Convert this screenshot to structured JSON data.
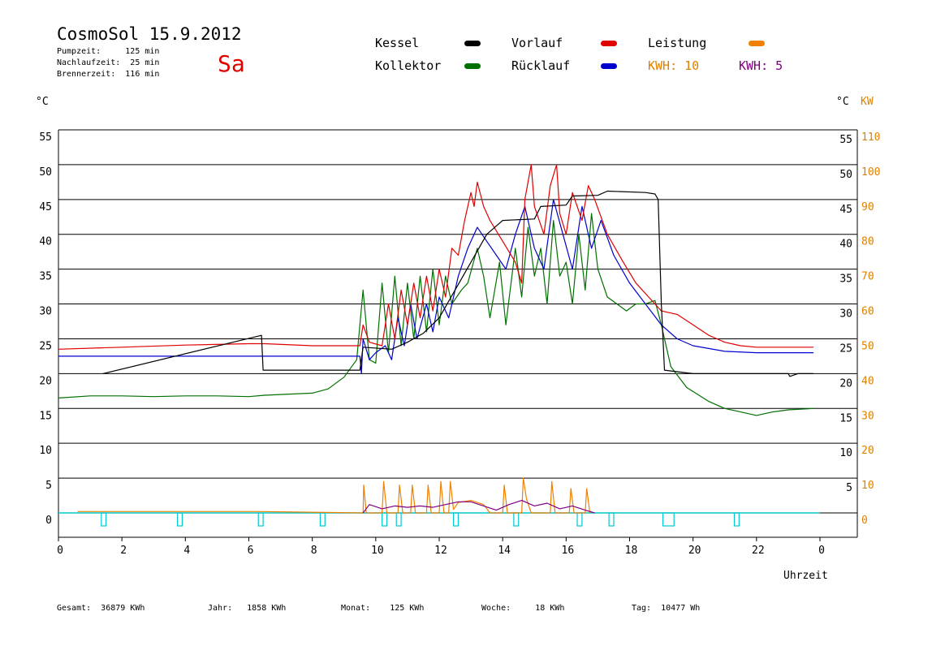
{
  "header": {
    "title": "CosmoSol 15.9.2012",
    "weekday": "Sa",
    "pumpzeit": "Pumpzeit:     125 min",
    "nachlaufzeit": "Nachlaufzeit:  25 min",
    "brennerzeit": "Brennerzeit:  116 min"
  },
  "legend": {
    "kessel": "Kessel",
    "vorlauf": "Vorlauf",
    "leistung": "Leistung",
    "kollektor": "Kollektor",
    "ruecklauf": "Rücklauf",
    "kwh_orange": "KWH: 10",
    "kwh_purple": "KWH: 5"
  },
  "axes": {
    "left_unit": "°C",
    "right_unit_temp": "°C",
    "right_unit_kw": "KW",
    "xlabel": "Uhrzeit"
  },
  "footer": {
    "gesamt": "Gesamt:  36879 KWh",
    "jahr": "Jahr:   1858 KWh",
    "monat": "Monat:    125 KWh",
    "woche": "Woche:     18 KWh",
    "tag": "Tag:  10477 Wh"
  },
  "colors": {
    "kessel": "#000000",
    "vorlauf": "#e00000",
    "ruecklauf": "#0000cc",
    "kollektor": "#007000",
    "leistung": "#f08000",
    "kwh_purple": "#800080",
    "pump": "#00c8d0"
  },
  "chart_data": {
    "type": "line",
    "x_ticks": [
      "0",
      "2",
      "4",
      "6",
      "8",
      "10",
      "12",
      "14",
      "16",
      "18",
      "20",
      "22",
      "0"
    ],
    "xlim": [
      0,
      24
    ],
    "y_ticks_left": [
      "0",
      "5",
      "10",
      "15",
      "20",
      "25",
      "30",
      "35",
      "40",
      "45",
      "50",
      "55"
    ],
    "y_ticks_right_temp": [
      "5",
      "10",
      "15",
      "20",
      "25",
      "30",
      "35",
      "40",
      "45",
      "50",
      "55"
    ],
    "y_ticks_right_kw": [
      "0",
      "10",
      "20",
      "30",
      "40",
      "50",
      "60",
      "70",
      "80",
      "90",
      "100",
      "110"
    ],
    "ylim": [
      0,
      55
    ],
    "y2lim": [
      0,
      110
    ],
    "series": [
      {
        "name": "Kessel",
        "color": "#000000",
        "points": [
          [
            1.4,
            20.0
          ],
          [
            6.4,
            25.5
          ],
          [
            6.45,
            20.5
          ],
          [
            9.5,
            20.5
          ],
          [
            9.6,
            23.8
          ],
          [
            10.5,
            23.5
          ],
          [
            11.0,
            24.5
          ],
          [
            11.5,
            25.8
          ],
          [
            12.0,
            28.0
          ],
          [
            12.5,
            32.0
          ],
          [
            13.0,
            36.0
          ],
          [
            13.5,
            40.0
          ],
          [
            14.0,
            42.0
          ],
          [
            15.0,
            42.2
          ],
          [
            15.2,
            44.0
          ],
          [
            16.0,
            44.2
          ],
          [
            16.2,
            45.5
          ],
          [
            17.0,
            45.6
          ],
          [
            17.3,
            46.2
          ],
          [
            18.5,
            46.0
          ],
          [
            18.8,
            45.8
          ],
          [
            18.9,
            45.0
          ],
          [
            19.0,
            30.0
          ],
          [
            19.1,
            20.5
          ],
          [
            20.0,
            20.0
          ],
          [
            23.0,
            20.0
          ],
          [
            23.05,
            19.6
          ],
          [
            23.3,
            20.0
          ],
          [
            23.8,
            20.0
          ]
        ]
      },
      {
        "name": "Vorlauf",
        "color": "#e00000",
        "points": [
          [
            0,
            23.5
          ],
          [
            2,
            23.8
          ],
          [
            4,
            24.1
          ],
          [
            6,
            24.3
          ],
          [
            6.5,
            24.3
          ],
          [
            8,
            24.0
          ],
          [
            9.5,
            24.0
          ],
          [
            9.6,
            27.0
          ],
          [
            9.8,
            24.5
          ],
          [
            10.2,
            24.0
          ],
          [
            10.4,
            30.0
          ],
          [
            10.6,
            25.0
          ],
          [
            10.8,
            32.0
          ],
          [
            11.0,
            27.0
          ],
          [
            11.2,
            33.0
          ],
          [
            11.4,
            28.0
          ],
          [
            11.6,
            34.0
          ],
          [
            11.8,
            29.0
          ],
          [
            12.0,
            35.0
          ],
          [
            12.2,
            31.0
          ],
          [
            12.4,
            38.0
          ],
          [
            12.6,
            37.0
          ],
          [
            12.8,
            42.0
          ],
          [
            13.0,
            46.0
          ],
          [
            13.1,
            44.0
          ],
          [
            13.2,
            47.5
          ],
          [
            13.4,
            44.0
          ],
          [
            13.6,
            42.0
          ],
          [
            14.0,
            39.0
          ],
          [
            14.4,
            36.0
          ],
          [
            14.6,
            33.0
          ],
          [
            14.7,
            45.0
          ],
          [
            14.9,
            50.0
          ],
          [
            15.0,
            44.0
          ],
          [
            15.3,
            40.0
          ],
          [
            15.5,
            47.0
          ],
          [
            15.7,
            50.0
          ],
          [
            15.8,
            43.0
          ],
          [
            16.0,
            40.0
          ],
          [
            16.2,
            46.0
          ],
          [
            16.5,
            42.0
          ],
          [
            16.7,
            47.0
          ],
          [
            16.9,
            45.0
          ],
          [
            17.3,
            40.0
          ],
          [
            17.8,
            36.0
          ],
          [
            18.2,
            33.0
          ],
          [
            18.6,
            31.0
          ],
          [
            19.0,
            29.0
          ],
          [
            19.5,
            28.5
          ],
          [
            20.0,
            27.0
          ],
          [
            20.5,
            25.5
          ],
          [
            21.0,
            24.5
          ],
          [
            21.5,
            24.0
          ],
          [
            22.0,
            23.8
          ],
          [
            23.0,
            23.8
          ],
          [
            23.8,
            23.8
          ]
        ]
      },
      {
        "name": "Rücklauf",
        "color": "#0000cc",
        "points": [
          [
            0,
            22.5
          ],
          [
            3,
            22.5
          ],
          [
            6,
            22.5
          ],
          [
            7,
            22.5
          ],
          [
            9.5,
            22.5
          ],
          [
            9.55,
            20.0
          ],
          [
            9.6,
            25.0
          ],
          [
            9.8,
            22.0
          ],
          [
            10.0,
            23.0
          ],
          [
            10.3,
            24.0
          ],
          [
            10.5,
            22.0
          ],
          [
            10.7,
            28.0
          ],
          [
            10.9,
            24.0
          ],
          [
            11.1,
            30.0
          ],
          [
            11.3,
            25.0
          ],
          [
            11.6,
            30.0
          ],
          [
            11.8,
            26.0
          ],
          [
            12.0,
            31.0
          ],
          [
            12.3,
            28.0
          ],
          [
            12.6,
            34.0
          ],
          [
            12.9,
            38.0
          ],
          [
            13.2,
            41.0
          ],
          [
            13.5,
            39.0
          ],
          [
            13.8,
            37.0
          ],
          [
            14.1,
            35.0
          ],
          [
            14.4,
            40.0
          ],
          [
            14.7,
            44.0
          ],
          [
            15.0,
            38.0
          ],
          [
            15.3,
            35.0
          ],
          [
            15.6,
            45.0
          ],
          [
            15.9,
            40.0
          ],
          [
            16.2,
            35.0
          ],
          [
            16.5,
            44.0
          ],
          [
            16.8,
            38.0
          ],
          [
            17.1,
            42.0
          ],
          [
            17.5,
            37.0
          ],
          [
            18.0,
            33.0
          ],
          [
            18.5,
            30.0
          ],
          [
            19.0,
            27.0
          ],
          [
            19.5,
            25.0
          ],
          [
            20.0,
            24.0
          ],
          [
            21.0,
            23.2
          ],
          [
            22.0,
            23.0
          ],
          [
            23.0,
            23.0
          ],
          [
            23.8,
            23.0
          ]
        ]
      },
      {
        "name": "Kollektor",
        "color": "#007000",
        "points": [
          [
            0,
            16.5
          ],
          [
            1,
            16.8
          ],
          [
            2,
            16.8
          ],
          [
            3,
            16.7
          ],
          [
            4,
            16.8
          ],
          [
            5,
            16.8
          ],
          [
            6,
            16.7
          ],
          [
            6.5,
            16.9
          ],
          [
            7,
            17.0
          ],
          [
            8,
            17.2
          ],
          [
            8.5,
            17.8
          ],
          [
            9,
            19.5
          ],
          [
            9.4,
            22.0
          ],
          [
            9.6,
            32.0
          ],
          [
            9.8,
            22.0
          ],
          [
            10.0,
            21.5
          ],
          [
            10.2,
            33.0
          ],
          [
            10.4,
            23.0
          ],
          [
            10.6,
            34.0
          ],
          [
            10.8,
            24.0
          ],
          [
            11.0,
            33.0
          ],
          [
            11.2,
            25.0
          ],
          [
            11.4,
            34.0
          ],
          [
            11.6,
            26.0
          ],
          [
            11.8,
            35.0
          ],
          [
            12.0,
            27.0
          ],
          [
            12.2,
            34.0
          ],
          [
            12.4,
            30.0
          ],
          [
            12.7,
            32.0
          ],
          [
            12.9,
            33.0
          ],
          [
            13.2,
            38.0
          ],
          [
            13.4,
            34.0
          ],
          [
            13.6,
            28.0
          ],
          [
            13.9,
            36.0
          ],
          [
            14.1,
            27.0
          ],
          [
            14.4,
            38.0
          ],
          [
            14.6,
            31.0
          ],
          [
            14.8,
            41.0
          ],
          [
            15.0,
            34.0
          ],
          [
            15.2,
            38.0
          ],
          [
            15.4,
            30.0
          ],
          [
            15.6,
            42.0
          ],
          [
            15.8,
            34.0
          ],
          [
            16.0,
            36.0
          ],
          [
            16.2,
            30.0
          ],
          [
            16.4,
            40.0
          ],
          [
            16.6,
            32.0
          ],
          [
            16.8,
            43.0
          ],
          [
            17.0,
            35.0
          ],
          [
            17.3,
            31.0
          ],
          [
            17.6,
            30.0
          ],
          [
            17.9,
            29.0
          ],
          [
            18.2,
            30.0
          ],
          [
            18.5,
            30.0
          ],
          [
            18.8,
            30.5
          ],
          [
            19.0,
            27.0
          ],
          [
            19.3,
            21.0
          ],
          [
            19.8,
            18.0
          ],
          [
            20.5,
            16.0
          ],
          [
            21.0,
            15.0
          ],
          [
            21.5,
            14.5
          ],
          [
            22.0,
            14.0
          ],
          [
            22.5,
            14.5
          ],
          [
            23.0,
            14.8
          ],
          [
            23.8,
            15.0
          ]
        ]
      },
      {
        "name": "Leistung",
        "color": "#f08000",
        "points": [
          [
            0.6,
            0.2
          ],
          [
            6.4,
            0.2
          ],
          [
            9.6,
            0
          ],
          [
            9.62,
            4.0
          ],
          [
            9.7,
            0
          ],
          [
            10.2,
            0
          ],
          [
            10.25,
            4.5
          ],
          [
            10.35,
            0
          ],
          [
            10.7,
            0
          ],
          [
            10.75,
            4.0
          ],
          [
            10.85,
            0
          ],
          [
            11.1,
            0
          ],
          [
            11.15,
            4.0
          ],
          [
            11.25,
            0
          ],
          [
            11.6,
            0
          ],
          [
            11.65,
            4.0
          ],
          [
            11.75,
            0
          ],
          [
            12.0,
            0
          ],
          [
            12.05,
            4.5
          ],
          [
            12.15,
            0
          ],
          [
            12.3,
            0
          ],
          [
            12.35,
            4.5
          ],
          [
            12.45,
            0.5
          ],
          [
            12.6,
            1.5
          ],
          [
            13.0,
            1.8
          ],
          [
            13.4,
            1.2
          ],
          [
            13.6,
            0
          ],
          [
            14.0,
            0
          ],
          [
            14.05,
            4.0
          ],
          [
            14.15,
            0
          ],
          [
            14.6,
            0
          ],
          [
            14.65,
            5.0
          ],
          [
            14.75,
            2.0
          ],
          [
            14.9,
            0
          ],
          [
            15.5,
            0
          ],
          [
            15.55,
            4.5
          ],
          [
            15.65,
            0
          ],
          [
            16.1,
            0
          ],
          [
            16.15,
            3.5
          ],
          [
            16.25,
            0
          ],
          [
            16.6,
            0
          ],
          [
            16.65,
            3.5
          ],
          [
            16.75,
            0
          ]
        ]
      },
      {
        "name": "KWH",
        "color": "#800080",
        "points": [
          [
            9.6,
            0
          ],
          [
            9.8,
            1.2
          ],
          [
            10.2,
            0.6
          ],
          [
            10.6,
            1.0
          ],
          [
            11.0,
            0.8
          ],
          [
            11.4,
            1.0
          ],
          [
            11.8,
            0.8
          ],
          [
            12.2,
            1.2
          ],
          [
            12.6,
            1.6
          ],
          [
            13.0,
            1.6
          ],
          [
            13.4,
            1.0
          ],
          [
            13.8,
            0.4
          ],
          [
            14.2,
            1.2
          ],
          [
            14.6,
            1.8
          ],
          [
            15.0,
            1.0
          ],
          [
            15.4,
            1.4
          ],
          [
            15.8,
            0.6
          ],
          [
            16.2,
            1.0
          ],
          [
            16.6,
            0.4
          ],
          [
            16.9,
            0
          ]
        ]
      }
    ],
    "pump_intervals": [
      [
        1.35,
        1.5
      ],
      [
        3.75,
        3.9
      ],
      [
        6.3,
        6.45
      ],
      [
        8.25,
        8.4
      ],
      [
        10.2,
        10.35
      ],
      [
        10.65,
        10.8
      ],
      [
        12.45,
        12.6
      ],
      [
        14.35,
        14.5
      ],
      [
        16.35,
        16.5
      ],
      [
        17.35,
        17.5
      ],
      [
        19.05,
        19.4
      ],
      [
        21.3,
        21.45
      ]
    ]
  }
}
